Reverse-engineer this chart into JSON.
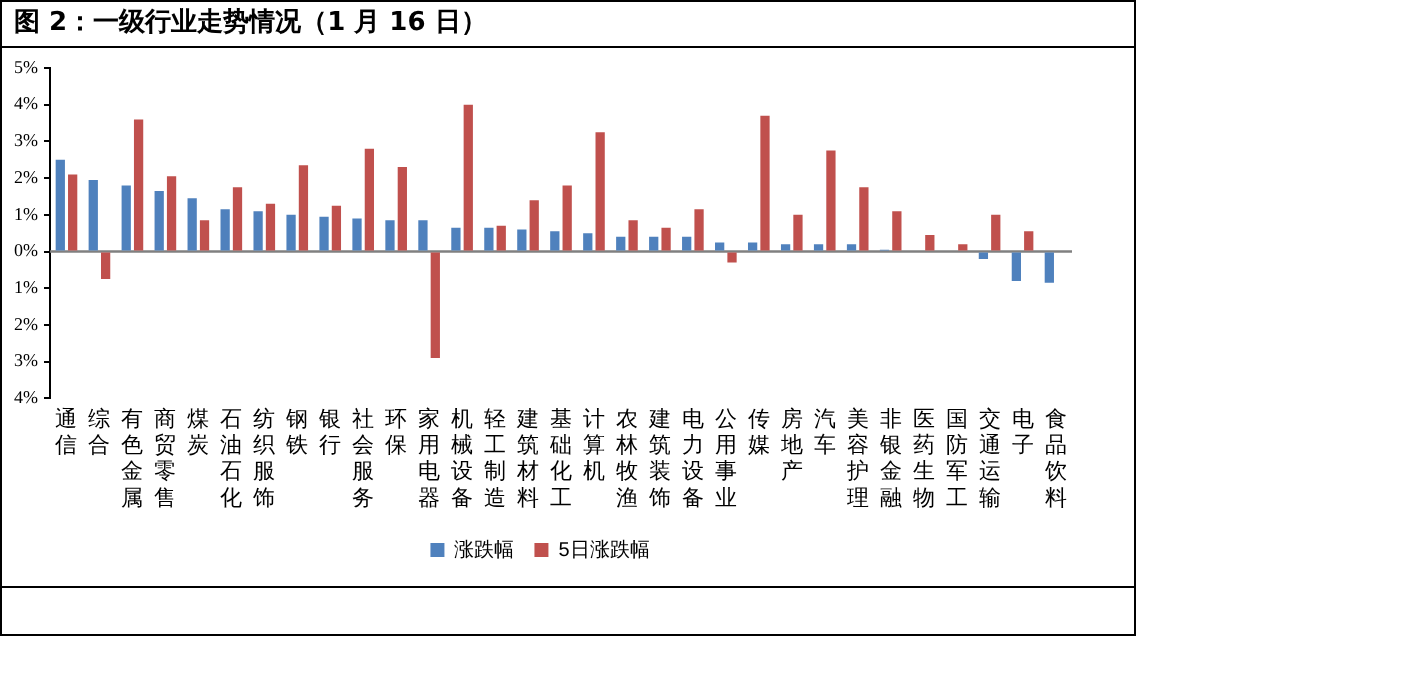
{
  "chart_data": {
    "type": "bar",
    "title": "图 2：一级行业走势情况（1 月 16 日）",
    "categories": [
      "通信",
      "综合",
      "有色金属",
      "商贸零售",
      "煤炭",
      "石油石化",
      "纺织服饰",
      "钢铁",
      "银行",
      "社会服务",
      "环保",
      "家用电器",
      "机械设备",
      "轻工制造",
      "建筑材料",
      "基础化工",
      "计算机",
      "农林牧渔",
      "建筑装饰",
      "电力设备",
      "公用事业",
      "传媒",
      "房地产",
      "汽车",
      "美容护理",
      "非银金融",
      "医药生物",
      "国防军工",
      "交通运输",
      "电子",
      "食品饮料"
    ],
    "series": [
      {
        "name": "涨跌幅",
        "color": "#4f81bd",
        "values": [
          2.5,
          1.95,
          1.8,
          1.65,
          1.45,
          1.15,
          1.1,
          1.0,
          0.95,
          0.9,
          0.85,
          0.85,
          0.65,
          0.65,
          0.6,
          0.55,
          0.5,
          0.4,
          0.4,
          0.4,
          0.25,
          0.25,
          0.2,
          0.2,
          0.2,
          0.05,
          0,
          0,
          -0.2,
          -0.8,
          -0.85
        ]
      },
      {
        "name": "5日涨跌幅",
        "color": "#c0504d",
        "values": [
          2.1,
          -0.75,
          3.6,
          2.05,
          0.85,
          1.75,
          1.3,
          2.35,
          1.25,
          2.8,
          2.3,
          -2.9,
          4.0,
          0.7,
          1.4,
          1.8,
          3.25,
          0.85,
          0.65,
          1.15,
          -0.3,
          3.7,
          1.0,
          2.75,
          1.75,
          1.1,
          0.45,
          0.2,
          1.0,
          0.55,
          0
        ]
      }
    ],
    "ylim": [
      -4,
      5
    ],
    "yticks": [
      {
        "value": -4,
        "label": "4%"
      },
      {
        "value": -3,
        "label": "3%"
      },
      {
        "value": -2,
        "label": "2%"
      },
      {
        "value": -1,
        "label": "1%"
      },
      {
        "value": 0,
        "label": "0%"
      },
      {
        "value": 1,
        "label": "1%"
      },
      {
        "value": 2,
        "label": "2%"
      },
      {
        "value": 3,
        "label": "3%"
      },
      {
        "value": 4,
        "label": "4%"
      },
      {
        "value": 5,
        "label": "5%"
      }
    ],
    "ref_lines": [
      {
        "axis": "y",
        "value": 0,
        "color": "#808080"
      }
    ],
    "grid": false,
    "legend": "bottom"
  }
}
